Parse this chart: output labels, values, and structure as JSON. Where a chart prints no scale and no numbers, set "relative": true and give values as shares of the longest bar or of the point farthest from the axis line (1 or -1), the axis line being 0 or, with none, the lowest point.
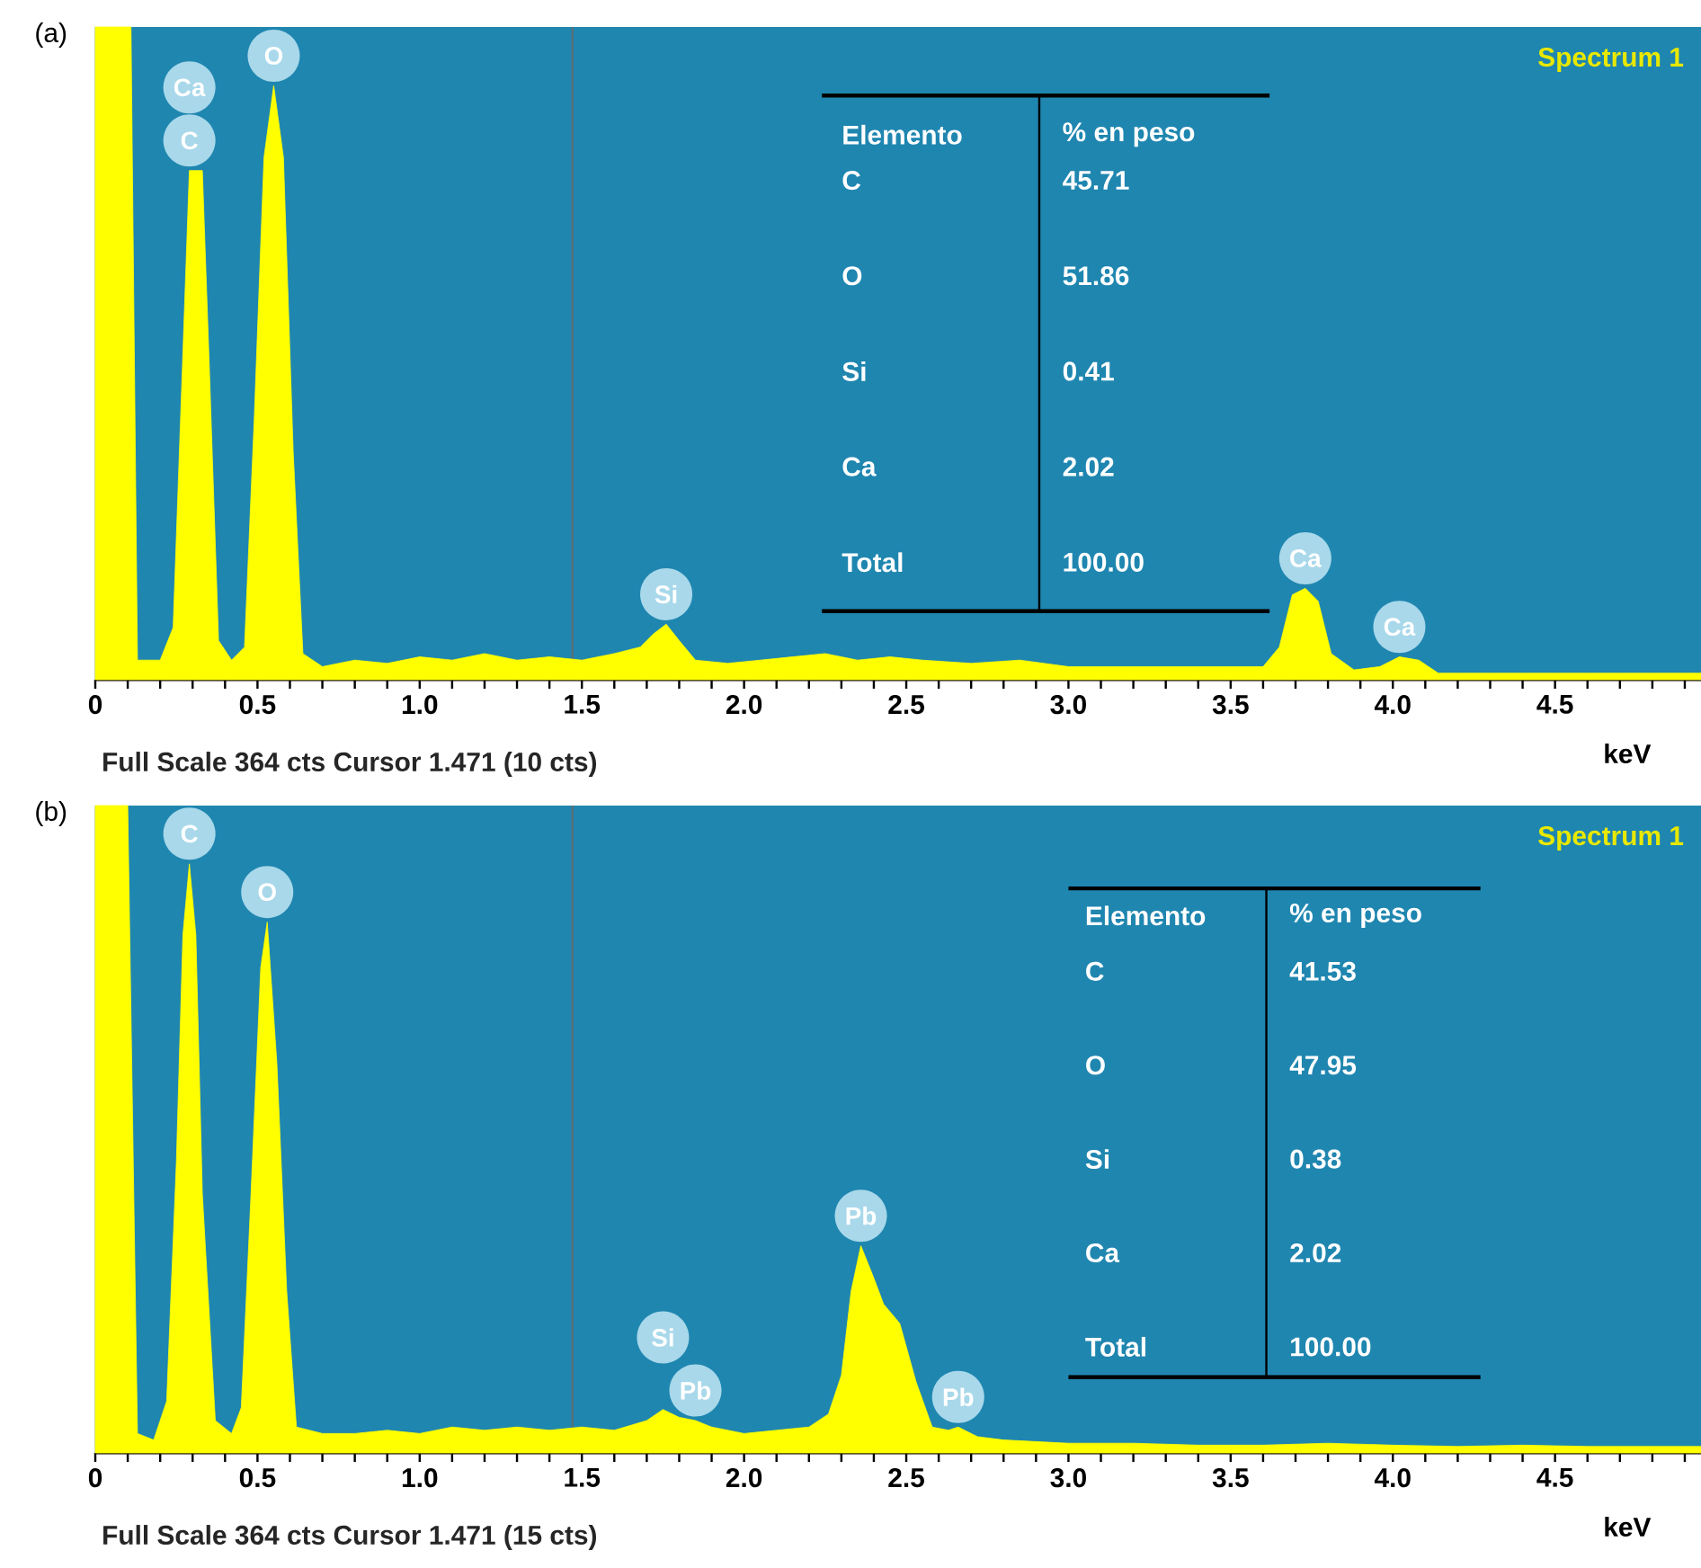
{
  "chart_data": [
    {
      "type": "area",
      "title": "(a)",
      "xlabel": "keV",
      "relative": true,
      "tick_labels": "x",
      "color": "#ffff00",
      "xlim": [
        0,
        4.95
      ],
      "xticks": [
        0,
        {
          "value": 0.1,
          "label": null
        },
        {
          "value": 0.2,
          "label": null
        },
        {
          "value": 0.3,
          "label": null
        },
        {
          "value": 0.4,
          "label": null
        },
        {
          "value": 0.5,
          "label": "0.5"
        },
        {
          "value": 0.6,
          "label": null
        },
        {
          "value": 0.7,
          "label": null
        },
        {
          "value": 0.8,
          "label": null
        },
        {
          "value": 0.9,
          "label": null
        },
        {
          "value": 1,
          "label": "1.0"
        },
        {
          "value": 1.1,
          "label": null
        },
        {
          "value": 1.2,
          "label": null
        },
        {
          "value": 1.3,
          "label": null
        },
        {
          "value": 1.4,
          "label": null
        },
        {
          "value": 1.5,
          "label": "1.5"
        },
        {
          "value": 1.6,
          "label": null
        },
        {
          "value": 1.7,
          "label": null
        },
        {
          "value": 1.8,
          "label": null
        },
        {
          "value": 1.9,
          "label": null
        },
        {
          "value": 2,
          "label": "2.0"
        },
        {
          "value": 2.1,
          "label": null
        },
        {
          "value": 2.2,
          "label": null
        },
        {
          "value": 2.3,
          "label": null
        },
        {
          "value": 2.4,
          "label": null
        },
        {
          "value": 2.5,
          "label": "2.5"
        },
        {
          "value": 2.6,
          "label": null
        },
        {
          "value": 2.7,
          "label": null
        },
        {
          "value": 2.8,
          "label": null
        },
        {
          "value": 2.9,
          "label": null
        },
        {
          "value": 3,
          "label": "3.0"
        },
        {
          "value": 3.1,
          "label": null
        },
        {
          "value": 3.2,
          "label": null
        },
        {
          "value": 3.3,
          "label": null
        },
        {
          "value": 3.4,
          "label": null
        },
        {
          "value": 3.5,
          "label": "3.5"
        },
        {
          "value": 3.6,
          "label": null
        },
        {
          "value": 3.7,
          "label": null
        },
        {
          "value": 3.8,
          "label": null
        },
        {
          "value": 3.9,
          "label": null
        },
        {
          "value": 4,
          "label": "4.0"
        },
        {
          "value": 4.1,
          "label": null
        },
        {
          "value": 4.2,
          "label": null
        },
        {
          "value": 4.3,
          "label": null
        },
        {
          "value": 4.4,
          "label": null
        },
        {
          "value": 4.5,
          "label": "4.5"
        },
        {
          "value": 4.6,
          "label": null
        },
        {
          "value": 4.7,
          "label": null
        },
        {
          "value": 4.8,
          "label": null
        },
        {
          "value": 4.9,
          "label": null
        }
      ],
      "x": [
        0,
        0.11,
        0.13,
        0.2,
        0.24,
        0.27,
        0.29,
        0.31,
        0.33,
        0.35,
        0.38,
        0.42,
        0.46,
        0.49,
        0.52,
        0.55,
        0.58,
        0.61,
        0.64,
        0.7,
        0.8,
        0.9,
        1.0,
        1.1,
        1.2,
        1.3,
        1.4,
        1.5,
        1.6,
        1.68,
        1.72,
        1.76,
        1.8,
        1.85,
        1.95,
        2.05,
        2.15,
        2.25,
        2.35,
        2.45,
        2.55,
        2.7,
        2.85,
        3.0,
        3.15,
        3.3,
        3.45,
        3.6,
        3.65,
        3.69,
        3.73,
        3.77,
        3.81,
        3.88,
        3.96,
        4.02,
        4.08,
        4.14,
        4.3,
        4.5,
        4.7,
        4.95
      ],
      "values": [
        1,
        1,
        0.03,
        0.03,
        0.08,
        0.5,
        0.78,
        null,
        0.78,
        0.5,
        0.06,
        0.03,
        0.05,
        0.4,
        0.8,
        0.91,
        0.8,
        0.35,
        0.04,
        0.02,
        0.03,
        0.025,
        0.035,
        0.03,
        0.04,
        0.03,
        0.035,
        0.03,
        0.04,
        0.05,
        0.07,
        0.085,
        0.06,
        0.03,
        0.025,
        0.03,
        0.035,
        0.04,
        0.03,
        0.035,
        0.03,
        0.025,
        0.03,
        0.02,
        0.02,
        0.02,
        0.02,
        0.02,
        0.05,
        0.13,
        0.14,
        0.12,
        0.04,
        0.015,
        0.02,
        0.035,
        0.03,
        0.01,
        0.01,
        0.01,
        0.01,
        0.01
      ],
      "ref_lines": [
        {
          "axis": "x",
          "value": 1.471,
          "color": "#55707a"
        }
      ],
      "annotations": [
        "Spectrum 1",
        "Full Scale 364 cts Cursor 1.471  (10 cts)",
        "Elemento",
        "% en peso",
        "C",
        "45.71",
        "O",
        "51.86",
        "Si",
        "0.41",
        "Ca",
        "2.02",
        "Total",
        "100.00",
        {
          "text": "C",
          "x": 0.29,
          "y": 0.78
        },
        {
          "text": "Ca",
          "x": 0.29,
          "y": 0.78
        },
        {
          "text": "O",
          "x": 0.55,
          "y": 0.91
        },
        {
          "text": "Si",
          "x": 1.76,
          "y": 0.085
        },
        {
          "text": "Ca",
          "x": 3.73,
          "y": 0.14
        },
        {
          "text": "Ca",
          "x": 4.02,
          "y": 0.035
        }
      ]
    },
    {
      "type": "area",
      "title": "(b)",
      "xlabel": "keV",
      "relative": true,
      "tick_labels": "x",
      "color": "#ffff00",
      "xlim": [
        0,
        4.95
      ],
      "xticks": [
        0,
        {
          "value": 0.1,
          "label": null
        },
        {
          "value": 0.2,
          "label": null
        },
        {
          "value": 0.3,
          "label": null
        },
        {
          "value": 0.4,
          "label": null
        },
        {
          "value": 0.5,
          "label": "0.5"
        },
        {
          "value": 0.6,
          "label": null
        },
        {
          "value": 0.7,
          "label": null
        },
        {
          "value": 0.8,
          "label": null
        },
        {
          "value": 0.9,
          "label": null
        },
        {
          "value": 1,
          "label": "1.0"
        },
        {
          "value": 1.1,
          "label": null
        },
        {
          "value": 1.2,
          "label": null
        },
        {
          "value": 1.3,
          "label": null
        },
        {
          "value": 1.4,
          "label": null
        },
        {
          "value": 1.5,
          "label": "1.5"
        },
        {
          "value": 1.6,
          "label": null
        },
        {
          "value": 1.7,
          "label": null
        },
        {
          "value": 1.8,
          "label": null
        },
        {
          "value": 1.9,
          "label": null
        },
        {
          "value": 2,
          "label": "2.0"
        },
        {
          "value": 2.1,
          "label": null
        },
        {
          "value": 2.2,
          "label": null
        },
        {
          "value": 2.3,
          "label": null
        },
        {
          "value": 2.4,
          "label": null
        },
        {
          "value": 2.5,
          "label": "2.5"
        },
        {
          "value": 2.6,
          "label": null
        },
        {
          "value": 2.7,
          "label": null
        },
        {
          "value": 2.8,
          "label": null
        },
        {
          "value": 2.9,
          "label": null
        },
        {
          "value": 3,
          "label": "3.0"
        },
        {
          "value": 3.1,
          "label": null
        },
        {
          "value": 3.2,
          "label": null
        },
        {
          "value": 3.3,
          "label": null
        },
        {
          "value": 3.4,
          "label": null
        },
        {
          "value": 3.5,
          "label": "3.5"
        },
        {
          "value": 3.6,
          "label": null
        },
        {
          "value": 3.7,
          "label": null
        },
        {
          "value": 3.8,
          "label": null
        },
        {
          "value": 3.9,
          "label": null
        },
        {
          "value": 4,
          "label": "4.0"
        },
        {
          "value": 4.1,
          "label": null
        },
        {
          "value": 4.2,
          "label": null
        },
        {
          "value": 4.3,
          "label": null
        },
        {
          "value": 4.4,
          "label": null
        },
        {
          "value": 4.5,
          "label": "4.5"
        },
        {
          "value": 4.6,
          "label": null
        },
        {
          "value": 4.7,
          "label": null
        },
        {
          "value": 4.8,
          "label": null
        },
        {
          "value": 4.9,
          "label": null
        }
      ],
      "x": [
        0,
        0.1,
        0.13,
        0.18,
        0.22,
        0.25,
        0.27,
        0.29,
        0.31,
        0.33,
        0.37,
        0.42,
        0.45,
        0.48,
        0.51,
        0.53,
        0.56,
        0.59,
        0.62,
        0.7,
        0.8,
        0.9,
        1.0,
        1.1,
        1.2,
        1.3,
        1.4,
        1.5,
        1.6,
        1.7,
        1.75,
        1.8,
        1.85,
        1.9,
        2.0,
        2.1,
        2.2,
        2.26,
        2.3,
        2.33,
        2.36,
        2.4,
        2.43,
        2.48,
        2.53,
        2.58,
        2.63,
        2.66,
        2.72,
        2.8,
        3.0,
        3.2,
        3.4,
        3.6,
        3.8,
        4.0,
        4.2,
        4.4,
        4.6,
        4.95
      ],
      "values": [
        1,
        1,
        0.03,
        0.02,
        0.08,
        0.45,
        0.8,
        0.91,
        0.8,
        0.4,
        0.05,
        0.03,
        0.07,
        0.4,
        0.75,
        0.82,
        0.6,
        0.25,
        0.04,
        0.03,
        0.03,
        0.035,
        0.03,
        0.04,
        0.035,
        0.04,
        0.035,
        0.04,
        0.035,
        0.05,
        0.067,
        0.055,
        0.05,
        0.04,
        0.03,
        0.035,
        0.04,
        0.06,
        0.12,
        0.25,
        0.32,
        0.27,
        0.23,
        0.2,
        0.11,
        0.04,
        0.035,
        0.04,
        0.025,
        0.02,
        0.015,
        0.015,
        0.012,
        0.012,
        0.015,
        0.012,
        0.01,
        0.012,
        0.01,
        0.01
      ],
      "ref_lines": [
        {
          "axis": "x",
          "value": 1.471,
          "color": "#55707a"
        }
      ],
      "annotations": [
        "Spectrum 1",
        "Full Scale 364 cts Cursor 1.471  (15 cts)",
        "Elemento",
        "% en peso",
        "C",
        "41.53",
        "O",
        "47.95",
        "Si",
        "0.38",
        "Ca",
        "2.02",
        "Total",
        "100.00",
        {
          "text": "C",
          "x": 0.29,
          "y": 0.91
        },
        {
          "text": "O",
          "x": 0.53,
          "y": 0.82
        },
        {
          "text": "Pb",
          "x": 1.85,
          "y": 0.05
        },
        {
          "text": "Si",
          "x": 1.75,
          "y": 0.067
        },
        {
          "text": "Pb",
          "x": 2.36,
          "y": 0.32
        },
        {
          "text": "Pb",
          "x": 2.66,
          "y": 0.04
        }
      ]
    }
  ]
}
